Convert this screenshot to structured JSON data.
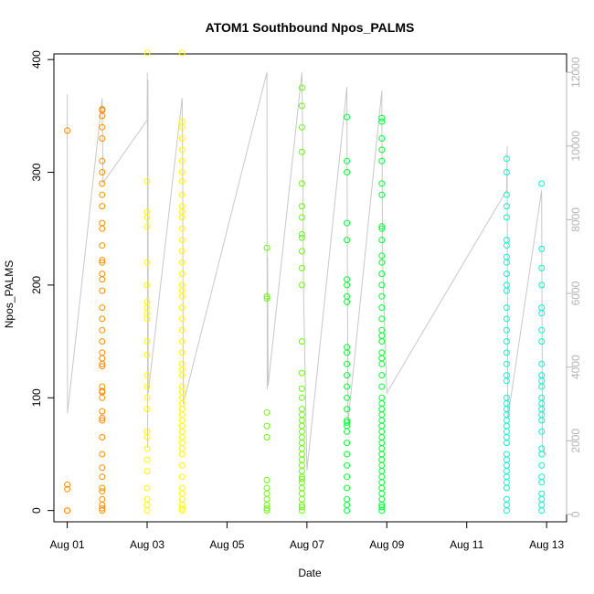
{
  "chart_data": {
    "type": "scatter",
    "title": "ATOM1 Southbound Npos_PALMS",
    "xlabel": "Date",
    "ylabel": "Npos_PALMS",
    "x_tick_labels": [
      "Aug 01",
      "Aug 03",
      "Aug 05",
      "Aug 07",
      "Aug 09",
      "Aug 11",
      "Aug 13"
    ],
    "x_tick_values": [
      "2016-08-01",
      "2016-08-03",
      "2016-08-05",
      "2016-08-07",
      "2016-08-09",
      "2016-08-11",
      "2016-08-13"
    ],
    "xlim": [
      "2016-07-31 16:00",
      "2016-08-13 12:00"
    ],
    "ylim": [
      -10,
      405
    ],
    "y_ticks": [
      0,
      100,
      200,
      300,
      400
    ],
    "y2_ticks": [
      0,
      2000,
      4000,
      6000,
      8000,
      10000,
      12000
    ],
    "y2lim": [
      -200,
      12500
    ],
    "grid": false,
    "legend": "none",
    "point_style": "open-circle",
    "line_color": "#c8c8c8",
    "colors": {
      "Aug 01": "#ff8c00",
      "Aug 03": "#ffff00",
      "Aug 06": "#66ff00",
      "Aug 08": "#00ff33",
      "Aug 12": "#00ffcc"
    },
    "clusters": [
      {
        "date": "2016-08-01 00:00",
        "color": "#ff8c00",
        "values": [
          337,
          23,
          19,
          0,
          0
        ]
      },
      {
        "date": "2016-08-01 21:00",
        "color": "#ff8c00",
        "values": [
          356,
          355,
          350,
          340,
          330,
          310,
          300,
          290,
          280,
          270,
          255,
          250,
          235,
          222,
          220,
          210,
          205,
          195,
          180,
          170,
          160,
          150,
          140,
          135,
          130,
          128,
          110,
          106,
          105,
          100,
          88,
          82,
          80,
          65,
          50,
          38,
          30,
          20,
          17,
          10,
          5,
          2,
          0
        ]
      },
      {
        "date": "2016-08-03 00:00",
        "color": "#ffff00",
        "values": [
          406,
          292,
          265,
          260,
          252,
          220,
          200,
          185,
          180,
          175,
          170,
          150,
          138,
          120,
          110,
          100,
          90,
          70,
          65,
          55,
          45,
          35,
          20,
          10,
          5,
          0
        ]
      },
      {
        "date": "2016-08-03 21:00",
        "color": "#ffff00",
        "values": [
          406,
          345,
          340,
          330,
          320,
          310,
          300,
          292,
          280,
          270,
          265,
          260,
          250,
          240,
          230,
          220,
          210,
          200,
          195,
          190,
          180,
          170,
          160,
          150,
          140,
          130,
          125,
          120,
          110,
          105,
          100,
          95,
          90,
          85,
          80,
          75,
          70,
          65,
          60,
          55,
          50,
          40,
          30,
          20,
          15,
          10,
          5,
          2,
          0
        ]
      },
      {
        "date": "2016-08-06 00:00",
        "color": "#66ff00",
        "values": [
          233,
          190,
          188,
          87,
          75,
          65,
          27,
          20,
          15,
          10,
          5,
          2,
          0
        ]
      },
      {
        "date": "2016-08-06 21:00",
        "color": "#66ff00",
        "values": [
          375,
          359,
          340,
          318,
          290,
          270,
          260,
          245,
          242,
          230,
          215,
          200,
          150,
          122,
          108,
          100,
          90,
          85,
          80,
          75,
          70,
          65,
          60,
          55,
          50,
          45,
          40,
          35,
          30,
          28,
          25,
          20,
          15,
          10,
          5,
          3,
          0
        ]
      },
      {
        "date": "2016-08-08 00:00",
        "color": "#00ff33",
        "values": [
          349,
          310,
          300,
          255,
          240,
          205,
          200,
          190,
          185,
          145,
          140,
          130,
          120,
          110,
          100,
          90,
          80,
          78,
          75,
          70,
          60,
          50,
          40,
          30,
          20,
          10,
          5,
          0
        ]
      },
      {
        "date": "2016-08-08 21:00",
        "color": "#00ff33",
        "values": [
          348,
          345,
          330,
          320,
          310,
          290,
          280,
          252,
          250,
          240,
          226,
          220,
          210,
          200,
          190,
          180,
          170,
          160,
          155,
          150,
          140,
          135,
          130,
          120,
          110,
          100,
          95,
          90,
          85,
          80,
          75,
          70,
          65,
          60,
          55,
          50,
          45,
          40,
          35,
          30,
          25,
          20,
          15,
          10,
          5,
          3,
          0
        ]
      },
      {
        "date": "2016-08-12 00:00",
        "color": "#00ffcc",
        "values": [
          312,
          300,
          280,
          270,
          260,
          240,
          235,
          225,
          220,
          210,
          200,
          195,
          180,
          170,
          160,
          150,
          140,
          130,
          120,
          115,
          100,
          95,
          90,
          85,
          80,
          75,
          70,
          65,
          60,
          50,
          45,
          40,
          35,
          30,
          25,
          20,
          10,
          5,
          0
        ]
      },
      {
        "date": "2016-08-12 21:00",
        "color": "#00ffcc",
        "values": [
          290,
          232,
          215,
          200,
          180,
          175,
          160,
          150,
          130,
          120,
          115,
          110,
          100,
          95,
          90,
          85,
          80,
          70,
          55,
          50,
          40,
          30,
          25,
          15,
          10,
          5,
          0
        ]
      }
    ],
    "secondary_series": {
      "name": "",
      "axis": "right",
      "color": "#c8c8c8",
      "points": [
        {
          "date": "2016-08-01 00:00",
          "value": 11400
        },
        {
          "date": "2016-08-01 00:05",
          "value": 7000
        },
        {
          "date": "2016-08-01 00:10",
          "value": 2750
        },
        {
          "date": "2016-08-01 21:00",
          "value": 11300
        },
        {
          "date": "2016-08-01 21:30",
          "value": 9000
        },
        {
          "date": "2016-08-03 00:00",
          "value": 10700
        },
        {
          "date": "2016-08-03 00:10",
          "value": 12000
        },
        {
          "date": "2016-08-03 00:20",
          "value": 1800
        },
        {
          "date": "2016-08-03 00:30",
          "value": 11800
        },
        {
          "date": "2016-08-03 00:40",
          "value": 3300
        },
        {
          "date": "2016-08-03 21:00",
          "value": 11300
        },
        {
          "date": "2016-08-03 21:20",
          "value": 9500
        },
        {
          "date": "2016-08-03 21:40",
          "value": 3000
        },
        {
          "date": "2016-08-06 00:00",
          "value": 12000
        },
        {
          "date": "2016-08-06 00:10",
          "value": 3400
        },
        {
          "date": "2016-08-06 00:20",
          "value": 7000
        },
        {
          "date": "2016-08-06 00:40",
          "value": 3500
        },
        {
          "date": "2016-08-06 21:00",
          "value": 12000
        },
        {
          "date": "2016-08-06 21:30",
          "value": 10000
        },
        {
          "date": "2016-08-06 22:00",
          "value": 6000
        },
        {
          "date": "2016-08-07 00:00",
          "value": 1200
        },
        {
          "date": "2016-08-08 00:00",
          "value": 11600
        },
        {
          "date": "2016-08-08 00:20",
          "value": 6200
        },
        {
          "date": "2016-08-08 00:40",
          "value": 2500
        },
        {
          "date": "2016-08-08 21:00",
          "value": 11500
        },
        {
          "date": "2016-08-08 21:30",
          "value": 6800
        },
        {
          "date": "2016-08-09 00:00",
          "value": 3300
        },
        {
          "date": "2016-08-12 00:00",
          "value": 8800
        },
        {
          "date": "2016-08-12 00:20",
          "value": 10000
        },
        {
          "date": "2016-08-12 00:40",
          "value": 2600
        },
        {
          "date": "2016-08-12 21:00",
          "value": 8800
        },
        {
          "date": "2016-08-12 21:30",
          "value": 1800
        },
        {
          "date": "2016-08-13 00:00",
          "value": 1600
        }
      ]
    }
  }
}
